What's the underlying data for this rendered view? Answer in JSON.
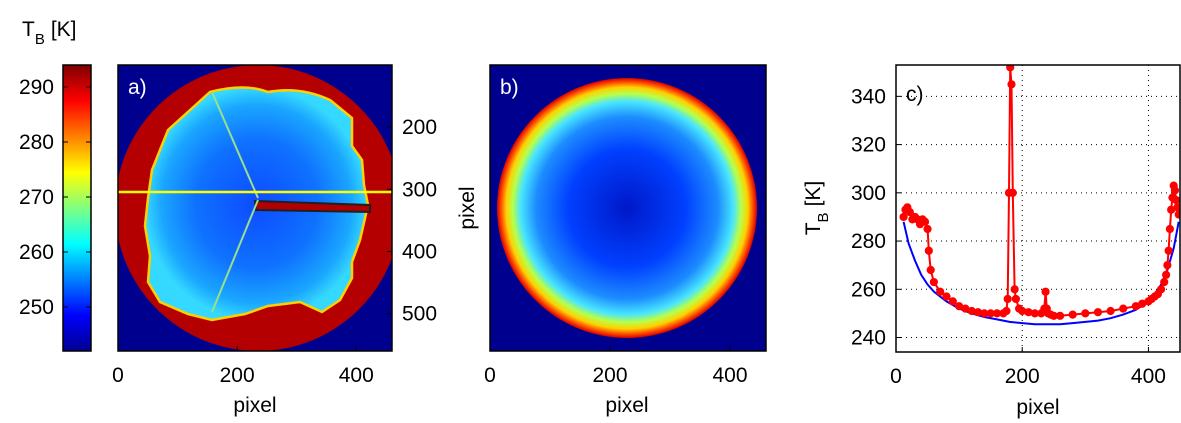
{
  "chart_data": [
    {
      "type": "heatmap",
      "panel": "colorbar",
      "title": "T_B [K]",
      "title_main": "T",
      "title_sub": "B",
      "title_unit": "[K]",
      "colormap": "jet",
      "range": [
        242,
        294
      ],
      "ticks": [
        250,
        260,
        270,
        280,
        290
      ]
    },
    {
      "type": "heatmap",
      "panel": "a",
      "panel_label": "a)",
      "xlabel": "pixel",
      "ylabel": "pixel",
      "x_ticks": [
        0,
        200,
        400
      ],
      "y_ticks": [
        200,
        300,
        400,
        500
      ],
      "xlim": [
        0,
        460
      ],
      "ylim": [
        100,
        560
      ],
      "description_colors": {
        "background": "#00008f",
        "rim": "#b80000",
        "sky": "#1fb6ff",
        "line": "#ffff00"
      }
    },
    {
      "type": "heatmap",
      "panel": "b",
      "panel_label": "b)",
      "xlabel": "pixel",
      "x_ticks": [
        0,
        200,
        400
      ],
      "xlim": [
        0,
        460
      ]
    },
    {
      "type": "line",
      "panel": "c",
      "panel_label": "c)",
      "xlabel": "pixel",
      "ylabel": "T_B [K]",
      "ylabel_main": "T",
      "ylabel_sub": "B",
      "ylabel_unit": "[K]",
      "x_ticks": [
        0,
        200,
        400
      ],
      "y_ticks": [
        240,
        260,
        280,
        300,
        320,
        340
      ],
      "xlim": [
        0,
        450
      ],
      "ylim": [
        234,
        353
      ],
      "grid": true,
      "series": [
        {
          "color": "#ff0000",
          "marker": "circle",
          "x": [
            12,
            15,
            18,
            22,
            26,
            30,
            34,
            38,
            42,
            46,
            50,
            52,
            55,
            60,
            70,
            80,
            90,
            100,
            110,
            120,
            130,
            140,
            150,
            160,
            170,
            175,
            177,
            179,
            181,
            183,
            185,
            188,
            190,
            195,
            200,
            210,
            220,
            230,
            235,
            237,
            239,
            241,
            245,
            250,
            260,
            280,
            300,
            320,
            340,
            360,
            380,
            390,
            400,
            405,
            410,
            415,
            420,
            425,
            428,
            430,
            432,
            434,
            436,
            438,
            440,
            442,
            444,
            446,
            448
          ],
          "y": [
            290,
            293,
            294,
            292,
            289,
            290,
            289,
            287,
            289,
            288,
            285,
            276,
            268,
            263,
            259,
            257,
            255,
            253,
            252,
            251,
            250.5,
            250,
            250,
            250,
            250,
            251,
            256,
            300,
            352,
            345,
            300,
            260,
            256,
            252,
            251,
            250.5,
            250,
            250,
            252,
            259,
            252,
            250,
            249.5,
            249,
            249,
            249.5,
            250,
            250.5,
            251,
            252,
            253,
            254,
            255,
            256,
            257,
            258,
            260,
            263,
            266,
            270,
            276,
            285,
            293,
            298,
            303,
            301,
            297,
            294,
            291
          ]
        },
        {
          "color": "#0000ff",
          "x": [
            12,
            20,
            30,
            40,
            50,
            60,
            80,
            100,
            120,
            140,
            160,
            180,
            200,
            220,
            240,
            260,
            280,
            300,
            320,
            340,
            360,
            380,
            400,
            410,
            420,
            430,
            440,
            448
          ],
          "y": [
            288,
            279,
            272,
            266,
            262,
            259,
            255,
            252,
            250,
            248.5,
            247.5,
            246.5,
            246,
            245.5,
            245.5,
            245.5,
            246,
            246.5,
            247,
            248,
            249.5,
            251.5,
            255,
            258,
            262,
            268,
            277,
            288
          ]
        }
      ]
    }
  ]
}
